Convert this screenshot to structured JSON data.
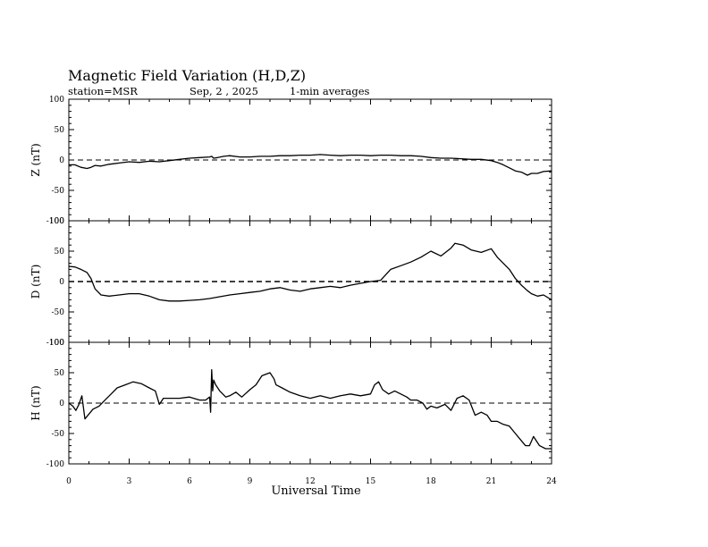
{
  "figure": {
    "title": "Magnetic Field Variation (H,D,Z)",
    "station": "station=MSR",
    "date": "Sep, 2  , 2025",
    "averaging": "1-min averages"
  },
  "chart_data": {
    "type": "line",
    "title": "Magnetic Field Variation (H,D,Z)",
    "xlabel": "Universal Time",
    "xlim": [
      0,
      24
    ],
    "x_ticks": [
      "0",
      "3",
      "6",
      "9",
      "12",
      "15",
      "18",
      "21",
      "24"
    ],
    "grid": false,
    "panels": [
      {
        "id": "Z",
        "ylabel": "Z (nT)",
        "ylim": [
          -100,
          100
        ],
        "y_ticks": [
          "100",
          "50",
          "0",
          "-50",
          "-100"
        ],
        "baseline": 0,
        "series": [
          {
            "x": [
              0,
              0.3,
              0.6,
              0.9,
              1.1,
              1.3,
              1.6,
              2,
              2.5,
              3,
              3.5,
              4,
              4.5,
              5,
              5.5,
              6,
              6.5,
              7,
              7.1,
              7.2,
              7.4,
              7.7,
              8,
              8.5,
              9,
              9.5,
              10,
              10.5,
              11,
              11.5,
              12,
              12.5,
              13,
              13.5,
              14,
              14.5,
              15,
              15.5,
              16,
              16.5,
              17,
              17.5,
              18,
              18.5,
              19,
              19.5,
              20,
              20.5,
              21,
              21.3,
              21.6,
              21.9,
              22.2,
              22.5,
              22.8,
              23,
              23.3,
              23.6,
              24
            ],
            "y": [
              -8,
              -8,
              -12,
              -14,
              -12,
              -9,
              -10,
              -7,
              -5,
              -3,
              -4,
              -2,
              -3,
              -1,
              1,
              3,
              4,
              5,
              6,
              3,
              4,
              6,
              7,
              5,
              5,
              6,
              6,
              7,
              7,
              8,
              8,
              9,
              8,
              7,
              8,
              8,
              7,
              8,
              8,
              7,
              7,
              6,
              4,
              3,
              3,
              2,
              1,
              1,
              -1,
              -4,
              -8,
              -13,
              -18,
              -20,
              -25,
              -22,
              -22,
              -19,
              -18
            ]
          }
        ]
      },
      {
        "id": "D",
        "ylabel": "D (nT)",
        "ylim": [
          -100,
          100
        ],
        "y_ticks": [
          "100",
          "50",
          "0",
          "-50",
          "-100"
        ],
        "baseline": 0,
        "series": [
          {
            "x": [
              0,
              0.3,
              0.6,
              0.9,
              1.1,
              1.3,
              1.6,
              2,
              2.5,
              3,
              3.5,
              4,
              4.5,
              5,
              5.5,
              6,
              6.5,
              7,
              7.5,
              8,
              8.5,
              9,
              9.5,
              10,
              10.5,
              11,
              11.5,
              12,
              12.5,
              13,
              13.5,
              14,
              14.5,
              15,
              15.5,
              16,
              16.5,
              17,
              17.5,
              18,
              18.5,
              19,
              19.2,
              19.6,
              20,
              20.5,
              21,
              21.3,
              21.6,
              21.9,
              22.2,
              22.5,
              22.8,
              23,
              23.3,
              23.6,
              24
            ],
            "y": [
              25,
              24,
              20,
              15,
              5,
              -12,
              -22,
              -24,
              -22,
              -20,
              -20,
              -24,
              -30,
              -32,
              -32,
              -31,
              -30,
              -28,
              -25,
              -22,
              -20,
              -18,
              -16,
              -12,
              -10,
              -14,
              -16,
              -12,
              -10,
              -8,
              -10,
              -6,
              -3,
              0,
              2,
              20,
              26,
              32,
              40,
              50,
              42,
              55,
              63,
              60,
              52,
              48,
              54,
              40,
              30,
              20,
              5,
              -6,
              -15,
              -20,
              -24,
              -22,
              -30
            ]
          }
        ]
      },
      {
        "id": "H",
        "ylabel": "H (nT)",
        "ylim": [
          -100,
          100
        ],
        "y_ticks": [
          "100",
          "50",
          "0",
          "-50",
          "-100"
        ],
        "baseline": 0,
        "series": [
          {
            "x": [
              0,
              0.2,
              0.35,
              0.5,
              0.65,
              0.8,
              0.95,
              1.2,
              1.5,
              1.8,
              2.1,
              2.4,
              2.8,
              3.2,
              3.6,
              4,
              4.3,
              4.5,
              4.7,
              5,
              5.5,
              6,
              6.5,
              6.8,
              7,
              7.05,
              7.1,
              7.15,
              7.2,
              7.3,
              7.5,
              7.8,
              8,
              8.3,
              8.6,
              9,
              9.3,
              9.6,
              10,
              10.2,
              10.3,
              10.6,
              11,
              11.5,
              12,
              12.5,
              13,
              13.5,
              14,
              14.5,
              15,
              15.2,
              15.4,
              15.6,
              15.9,
              16.2,
              16.5,
              16.8,
              17,
              17.3,
              17.6,
              17.8,
              18,
              18.3,
              18.7,
              19,
              19.3,
              19.6,
              19.9,
              20.2,
              20.5,
              20.8,
              21,
              21.3,
              21.6,
              21.9,
              22.2,
              22.5,
              22.7,
              22.9,
              23.1,
              23.4,
              23.7,
              24
            ],
            "y": [
              0,
              -5,
              -12,
              -2,
              12,
              -26,
              -20,
              -10,
              -5,
              5,
              15,
              25,
              30,
              35,
              32,
              25,
              20,
              -2,
              8,
              8,
              8,
              10,
              5,
              5,
              10,
              -15,
              55,
              20,
              38,
              30,
              20,
              10,
              12,
              18,
              10,
              22,
              30,
              45,
              50,
              40,
              30,
              25,
              18,
              12,
              8,
              12,
              8,
              12,
              15,
              12,
              15,
              30,
              35,
              22,
              15,
              20,
              15,
              10,
              5,
              5,
              0,
              -10,
              -5,
              -8,
              -2,
              -12,
              8,
              12,
              5,
              -20,
              -15,
              -20,
              -30,
              -30,
              -35,
              -38,
              -50,
              -62,
              -70,
              -70,
              -55,
              -70,
              -75,
              -75
            ]
          }
        ]
      }
    ]
  }
}
